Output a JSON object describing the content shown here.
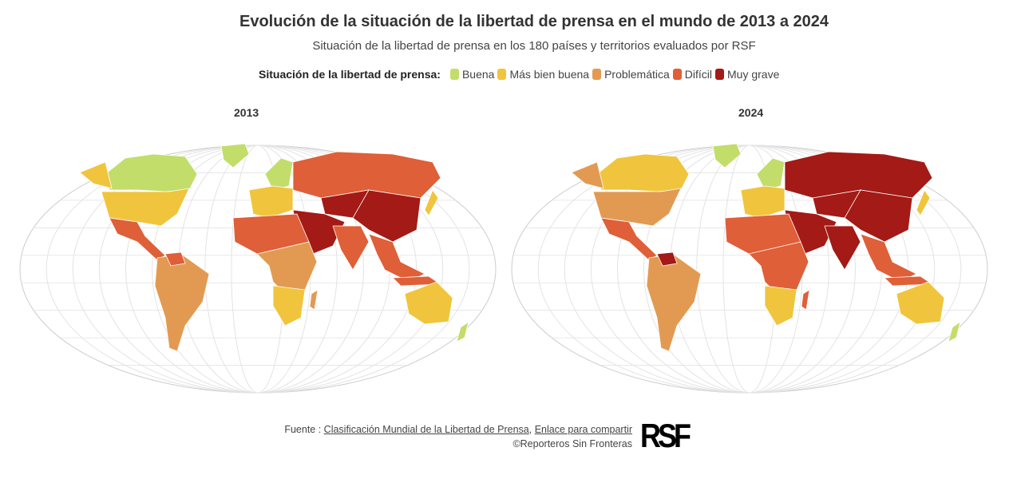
{
  "title": "Evolución de la situación de la libertad de prensa en el mundo de 2013 a 2024",
  "subtitle": "Situación de la libertad de prensa en los 180 países y territorios evaluados por RSF",
  "legend": {
    "label": "Situación de la libertad de prensa:",
    "items": [
      {
        "label": "Buena",
        "color": "#c3dd6b"
      },
      {
        "label": "Más bien buena",
        "color": "#f0c53d"
      },
      {
        "label": "Problemática",
        "color": "#e29a52"
      },
      {
        "label": "Difícil",
        "color": "#df5f38"
      },
      {
        "label": "Muy grave",
        "color": "#a31a16"
      }
    ]
  },
  "maps": [
    {
      "year": "2013"
    },
    {
      "year": "2024"
    }
  ],
  "footer": {
    "source_prefix": "Fuente : ",
    "source_link": "Clasificación Mundial de la Libertad de Prensa",
    "separator": ", ",
    "share_link": "Enlace para compartir",
    "copyright": "©Reporteros Sin Fronteras",
    "logo": "RSF"
  }
}
